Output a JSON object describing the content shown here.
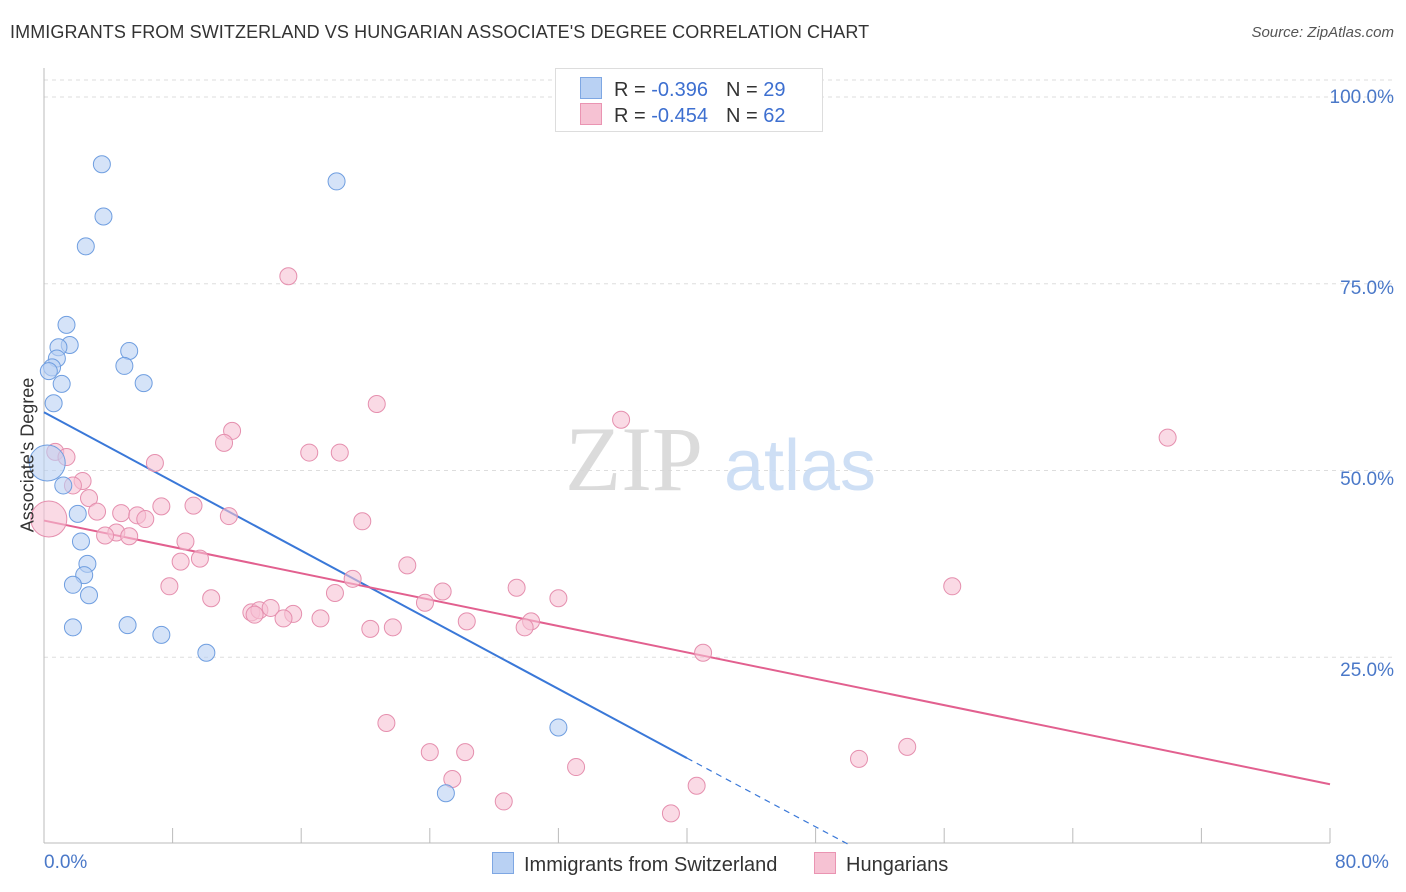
{
  "title": "IMMIGRANTS FROM SWITZERLAND VS HUNGARIAN ASSOCIATE'S DEGREE CORRELATION CHART",
  "source": "Source: ZipAtlas.com",
  "watermark": {
    "zip": "ZIP",
    "atlas": "atlas"
  },
  "colors": {
    "blue": "#3a78d8",
    "blue_fill": "#b9d1f3",
    "pink": "#e2608f",
    "pink_fill": "#f6c2d3",
    "grid": "#dddddd",
    "tick_text": "#4a78c8"
  },
  "legend": {
    "rows": [
      {
        "r_label": "R = ",
        "r_value": "-0.396",
        "n_label": "N = ",
        "n_value": "29"
      },
      {
        "r_label": "R = ",
        "r_value": "-0.454",
        "n_label": "N = ",
        "n_value": "62"
      }
    ]
  },
  "chart_data": {
    "type": "scatter",
    "title": "IMMIGRANTS FROM SWITZERLAND VS HUNGARIAN ASSOCIATE'S DEGREE CORRELATION CHART",
    "xlabel": "",
    "ylabel": "Associate's Degree",
    "xlim": [
      0,
      80
    ],
    "ylim": [
      0,
      105
    ],
    "x_tick_labels": [
      "0.0%",
      "80.0%"
    ],
    "y_ticks": [
      25,
      50,
      75,
      100
    ],
    "y_tick_labels": [
      "25.0%",
      "50.0%",
      "75.0%",
      "100.0%"
    ],
    "grid": true,
    "legend_position": "top-center",
    "series": [
      {
        "name": "Immigrants from Switzerland",
        "color": "#3a78d8",
        "points": [
          [
            3.6,
            91
          ],
          [
            3.7,
            84
          ],
          [
            2.6,
            80
          ],
          [
            18.2,
            88.7
          ],
          [
            1.4,
            69.5
          ],
          [
            1.6,
            66.8
          ],
          [
            0.9,
            66.5
          ],
          [
            0.8,
            65
          ],
          [
            0.5,
            63.8
          ],
          [
            0.3,
            63.3
          ],
          [
            5.3,
            66
          ],
          [
            5.0,
            64
          ],
          [
            6.2,
            61.7
          ],
          [
            1.1,
            61.6
          ],
          [
            0.6,
            59
          ],
          [
            0.2,
            51
          ],
          [
            1.2,
            48
          ],
          [
            2.1,
            44.2
          ],
          [
            2.3,
            40.5
          ],
          [
            2.7,
            37.5
          ],
          [
            2.5,
            36
          ],
          [
            1.8,
            34.7
          ],
          [
            2.8,
            33.3
          ],
          [
            1.8,
            29
          ],
          [
            5.2,
            29.3
          ],
          [
            7.3,
            28
          ],
          [
            10.1,
            25.6
          ],
          [
            32,
            15.6
          ],
          [
            25,
            6.8
          ]
        ],
        "trend": {
          "x": [
            0,
            40
          ],
          "y": [
            57.8,
            11.5
          ],
          "dashed_to": [
            50,
            0
          ]
        }
      },
      {
        "name": "Hungarians",
        "color": "#e2608f",
        "points": [
          [
            15.2,
            76
          ],
          [
            20.7,
            58.9
          ],
          [
            35.9,
            56.8
          ],
          [
            69.9,
            54.4
          ],
          [
            11.7,
            55.3
          ],
          [
            11.2,
            53.7
          ],
          [
            16.5,
            52.4
          ],
          [
            18.4,
            52.4
          ],
          [
            0.7,
            52.5
          ],
          [
            1.4,
            51.8
          ],
          [
            6.9,
            51
          ],
          [
            2.4,
            48.6
          ],
          [
            1.8,
            48
          ],
          [
            2.8,
            46.3
          ],
          [
            7.3,
            45.2
          ],
          [
            9.3,
            45.3
          ],
          [
            3.3,
            44.5
          ],
          [
            4.8,
            44.3
          ],
          [
            5.8,
            44
          ],
          [
            6.3,
            43.5
          ],
          [
            11.5,
            43.9
          ],
          [
            19.8,
            43.2
          ],
          [
            0.3,
            43.5
          ],
          [
            4.5,
            41.7
          ],
          [
            3.8,
            41.3
          ],
          [
            5.3,
            41.2
          ],
          [
            8.8,
            40.5
          ],
          [
            8.5,
            37.8
          ],
          [
            9.7,
            38.2
          ],
          [
            22.6,
            37.3
          ],
          [
            19.2,
            35.5
          ],
          [
            7.8,
            34.5
          ],
          [
            24.8,
            33.8
          ],
          [
            29.4,
            34.3
          ],
          [
            56.5,
            34.5
          ],
          [
            18.1,
            33.6
          ],
          [
            32.0,
            32.9
          ],
          [
            10.4,
            32.9
          ],
          [
            23.7,
            32.3
          ],
          [
            12.9,
            31.0
          ],
          [
            13.4,
            31.3
          ],
          [
            14.1,
            31.6
          ],
          [
            15.5,
            30.8
          ],
          [
            13.1,
            30.7
          ],
          [
            14.9,
            30.2
          ],
          [
            17.2,
            30.2
          ],
          [
            26.3,
            29.8
          ],
          [
            30.3,
            29.8
          ],
          [
            29.9,
            29
          ],
          [
            20.3,
            28.8
          ],
          [
            21.7,
            29
          ],
          [
            41.0,
            25.6
          ],
          [
            21.3,
            16.2
          ],
          [
            24.0,
            12.3
          ],
          [
            26.2,
            12.3
          ],
          [
            53.7,
            13
          ],
          [
            50.7,
            11.4
          ],
          [
            25.4,
            8.7
          ],
          [
            33.1,
            10.3
          ],
          [
            28.6,
            5.7
          ],
          [
            40.6,
            7.8
          ],
          [
            39.0,
            4.1
          ]
        ],
        "trend": {
          "x": [
            0,
            80
          ],
          "y": [
            43.3,
            8
          ]
        }
      }
    ]
  }
}
